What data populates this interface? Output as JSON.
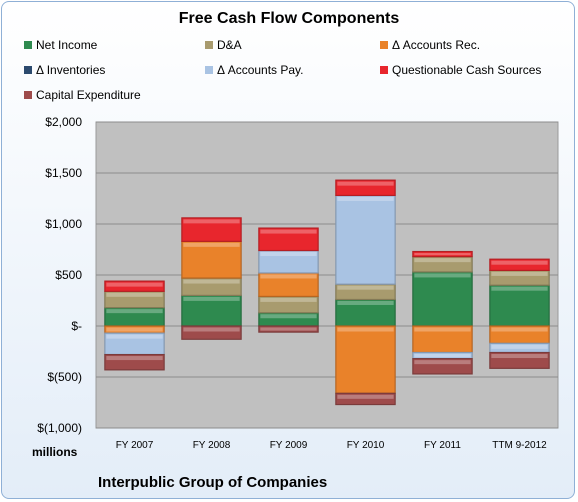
{
  "chart_data": {
    "type": "bar",
    "stacked": true,
    "title": "Free Cash Flow Components",
    "subtitle": "Interpublic Group of Companies",
    "ylabel": "millions",
    "categories": [
      "FY 2007",
      "FY 2008",
      "FY 2009",
      "FY 2010",
      "FY 2011",
      "TTM 9-2012"
    ],
    "ylim": [
      -1000,
      2000
    ],
    "yticks": [
      2000,
      1500,
      1000,
      500,
      0,
      -500,
      -1000
    ],
    "ytick_labels": [
      "$2,000",
      "$1,500",
      "$1,000",
      "$500",
      "$-",
      "$(500)",
      "$(1,000)"
    ],
    "grid": true,
    "legend_position": "top",
    "series": [
      {
        "name": "Net Income",
        "color": "#2e8a4f",
        "values": [
          180,
          300,
          130,
          260,
          530,
          400
        ]
      },
      {
        "name": "D&A",
        "color": "#a89b6e",
        "values": [
          160,
          170,
          160,
          150,
          150,
          145
        ]
      },
      {
        "name": "Δ Accounts Rec.",
        "color": "#e9822a",
        "values": [
          -70,
          360,
          230,
          -660,
          -260,
          -170
        ]
      },
      {
        "name": "Δ Inventories",
        "color": "#2c4a6e",
        "values": [
          0,
          0,
          0,
          0,
          0,
          0
        ]
      },
      {
        "name": "Δ Accounts Pay.",
        "color": "#a9c3e3",
        "values": [
          -210,
          0,
          220,
          870,
          -60,
          -90
        ]
      },
      {
        "name": "Questionable Cash Sources",
        "color": "#e8262d",
        "values": [
          100,
          230,
          220,
          150,
          50,
          110
        ]
      },
      {
        "name": "Capital Expenditure",
        "color": "#9e4b4b",
        "values": [
          -150,
          -130,
          -60,
          -110,
          -150,
          -155
        ]
      }
    ]
  }
}
